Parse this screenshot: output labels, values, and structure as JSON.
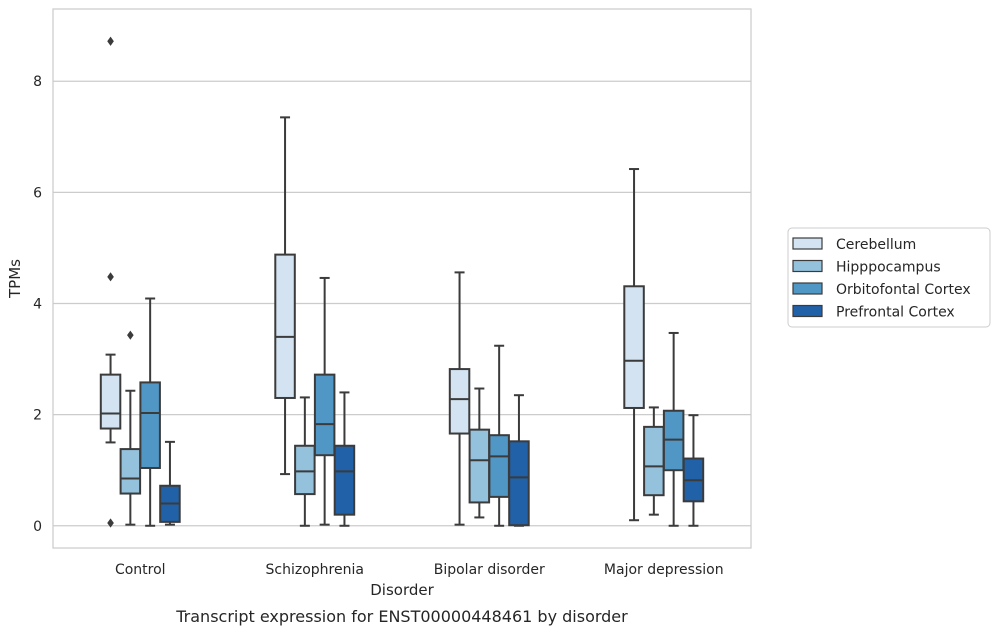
{
  "chart_data": {
    "type": "box",
    "xlabel": "Disorder",
    "ylabel": "TPMs",
    "caption": "Transcript expression for ENST00000448461 by disorder",
    "ylim": [
      -0.4,
      9.3
    ],
    "yticks": [
      0,
      2,
      4,
      6,
      8
    ],
    "categories": [
      "Control",
      "Schizophrenia",
      "Bipolar disorder",
      "Major depression"
    ],
    "legend_position": "right",
    "grid": true,
    "series": [
      {
        "name": "Cerebellum",
        "color": "#d3e3f2",
        "boxes": [
          {
            "whisker_low": 1.5,
            "q1": 1.75,
            "median": 2.02,
            "q3": 2.72,
            "whisker_high": 3.08,
            "outliers": [
              0.05,
              4.48,
              8.72
            ]
          },
          {
            "whisker_low": 0.93,
            "q1": 2.3,
            "median": 3.4,
            "q3": 4.88,
            "whisker_high": 7.35,
            "outliers": []
          },
          {
            "whisker_low": 0.02,
            "q1": 1.66,
            "median": 2.28,
            "q3": 2.82,
            "whisker_high": 4.56,
            "outliers": []
          },
          {
            "whisker_low": 0.1,
            "q1": 2.12,
            "median": 2.97,
            "q3": 4.31,
            "whisker_high": 6.42,
            "outliers": []
          }
        ]
      },
      {
        "name": "Hipppocampus",
        "color": "#94c1dc",
        "boxes": [
          {
            "whisker_low": 0.02,
            "q1": 0.58,
            "median": 0.85,
            "q3": 1.38,
            "whisker_high": 2.43,
            "outliers": [
              3.43
            ]
          },
          {
            "whisker_low": 0.0,
            "q1": 0.57,
            "median": 0.98,
            "q3": 1.44,
            "whisker_high": 2.31,
            "outliers": []
          },
          {
            "whisker_low": 0.15,
            "q1": 0.42,
            "median": 1.18,
            "q3": 1.73,
            "whisker_high": 2.47,
            "outliers": []
          },
          {
            "whisker_low": 0.2,
            "q1": 0.55,
            "median": 1.07,
            "q3": 1.78,
            "whisker_high": 2.13,
            "outliers": []
          }
        ]
      },
      {
        "name": "Orbitofontal Cortex",
        "color": "#5097c6",
        "boxes": [
          {
            "whisker_low": 0.0,
            "q1": 1.04,
            "median": 2.03,
            "q3": 2.58,
            "whisker_high": 4.09,
            "outliers": []
          },
          {
            "whisker_low": 0.02,
            "q1": 1.27,
            "median": 1.83,
            "q3": 2.72,
            "whisker_high": 4.46,
            "outliers": []
          },
          {
            "whisker_low": 0.0,
            "q1": 0.52,
            "median": 1.25,
            "q3": 1.63,
            "whisker_high": 3.24,
            "outliers": []
          },
          {
            "whisker_low": 0.0,
            "q1": 1.0,
            "median": 1.55,
            "q3": 2.07,
            "whisker_high": 3.47,
            "outliers": []
          }
        ]
      },
      {
        "name": "Prefrontal Cortex",
        "color": "#2161a8",
        "boxes": [
          {
            "whisker_low": 0.02,
            "q1": 0.07,
            "median": 0.4,
            "q3": 0.72,
            "whisker_high": 1.51,
            "outliers": []
          },
          {
            "whisker_low": 0.0,
            "q1": 0.2,
            "median": 0.98,
            "q3": 1.44,
            "whisker_high": 2.4,
            "outliers": []
          },
          {
            "whisker_low": 0.0,
            "q1": 0.01,
            "median": 0.87,
            "q3": 1.52,
            "whisker_high": 2.35,
            "outliers": []
          },
          {
            "whisker_low": 0.0,
            "q1": 0.44,
            "median": 0.82,
            "q3": 1.21,
            "whisker_high": 1.99,
            "outliers": []
          }
        ]
      }
    ]
  }
}
